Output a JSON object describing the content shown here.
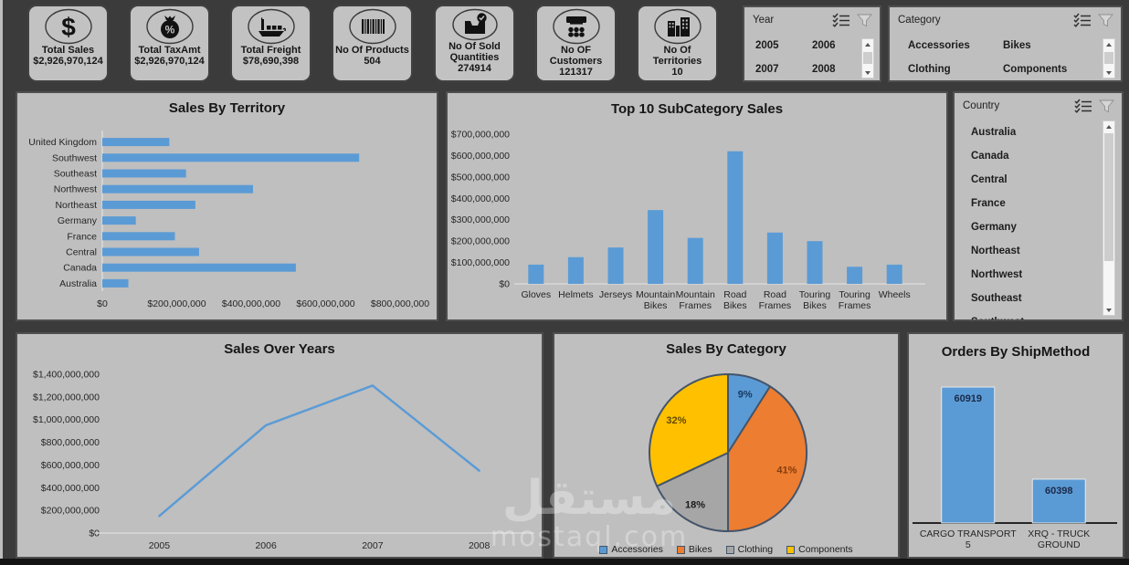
{
  "kpi": {
    "cards": [
      {
        "icon": "dollar-icon",
        "label": "Total Sales",
        "value": "$2,926,970,124"
      },
      {
        "icon": "tax-bag-icon",
        "label": "Total TaxAmt",
        "value": "$2,926,970,124"
      },
      {
        "icon": "cargo-ship-icon",
        "label": "Total Freight",
        "value": "$78,690,398"
      },
      {
        "icon": "barcode-icon",
        "label": "No Of Products",
        "value": "504"
      },
      {
        "icon": "sold-tray-icon",
        "label": "No Of Sold Quantities",
        "value": "274914"
      },
      {
        "icon": "customers-icon",
        "label": "No OF Customers",
        "value": "121317"
      },
      {
        "icon": "buildings-icon",
        "label": "No Of Territories",
        "value": "10"
      }
    ]
  },
  "slicers": {
    "year": {
      "title": "Year",
      "items": [
        "2005",
        "2006",
        "2007",
        "2008"
      ]
    },
    "category": {
      "title": "Category",
      "items": [
        "Accessories",
        "Bikes",
        "Clothing",
        "Components"
      ]
    },
    "country": {
      "title": "Country",
      "items": [
        "Australia",
        "Canada",
        "Central",
        "France",
        "Germany",
        "Northeast",
        "Northwest",
        "Southeast",
        "Southwest"
      ]
    }
  },
  "watermark": {
    "line1": "مستقل",
    "line2": "mostaql.com"
  },
  "colors": {
    "bar_blue": "#5b9bd5",
    "pie_outline": "#44546a",
    "panel_bg": "#bfbfbf",
    "page_bg": "#3b3b3b"
  },
  "chart_data": [
    {
      "id": "territory",
      "type": "bar",
      "orientation": "horizontal",
      "title": "Sales By Territory",
      "categories": [
        "United Kingdom",
        "Southwest",
        "Southeast",
        "Northwest",
        "Northeast",
        "Germany",
        "France",
        "Central",
        "Canada",
        "Australia"
      ],
      "values": [
        180000000,
        690000000,
        225000000,
        405000000,
        250000000,
        90000000,
        195000000,
        260000000,
        520000000,
        70000000
      ],
      "xlim": [
        0,
        800000000
      ],
      "xticks": [
        0,
        200000000,
        400000000,
        600000000,
        800000000
      ],
      "bar_color": "#5b9bd5",
      "grid": false,
      "legend": "none"
    },
    {
      "id": "subcat",
      "type": "bar",
      "orientation": "vertical",
      "title": "Top 10 SubCategory Sales",
      "categories": [
        "Gloves",
        "Helmets",
        "Jerseys",
        "Mountain Bikes",
        "Mountain Frames",
        "Road Bikes",
        "Road Frames",
        "Touring Bikes",
        "Touring Frames",
        "Wheels"
      ],
      "values": [
        90000000,
        125000000,
        170000000,
        345000000,
        215000000,
        620000000,
        240000000,
        200000000,
        80000000,
        90000000
      ],
      "ylim": [
        0,
        700000000
      ],
      "yticks": [
        0,
        100000000,
        200000000,
        300000000,
        400000000,
        500000000,
        600000000,
        700000000
      ],
      "bar_color": "#5b9bd5",
      "grid": false,
      "legend": "none"
    },
    {
      "id": "years",
      "type": "line",
      "title": "Sales Over Years",
      "x": [
        "2005",
        "2006",
        "2007",
        "2008"
      ],
      "values": [
        150000000,
        950000000,
        1300000000,
        550000000
      ],
      "ylim": [
        0,
        1400000000
      ],
      "yticks": [
        0,
        200000000,
        400000000,
        600000000,
        800000000,
        1000000000,
        1200000000,
        1400000000
      ],
      "line_color": "#5b9bd5",
      "grid": false,
      "legend": "none"
    },
    {
      "id": "category",
      "type": "pie",
      "title": "Sales By Category",
      "slices": [
        {
          "label": "Accessories",
          "pct": 9,
          "color": "#5b9bd5",
          "label_color": "#17375e"
        },
        {
          "label": "Bikes",
          "pct": 41,
          "color": "#ed7d31",
          "label_color": "#843c0c"
        },
        {
          "label": "Clothing",
          "pct": 18,
          "color": "#a6a6a6",
          "label_color": "#1a1a1a"
        },
        {
          "label": "Components",
          "pct": 32,
          "color": "#ffc000",
          "label_color": "#5f4a00"
        }
      ],
      "legend": "bottom"
    },
    {
      "id": "ship",
      "type": "bar",
      "orientation": "vertical",
      "title": "Orders By ShipMethod",
      "categories": [
        "CARGO TRANSPORT 5",
        "XRQ - TRUCK GROUND"
      ],
      "values": [
        60919,
        60398
      ],
      "ylim": [
        60150,
        60940
      ],
      "value_labels": true,
      "bar_color": "#5b9bd5",
      "grid": false,
      "legend": "none"
    }
  ]
}
